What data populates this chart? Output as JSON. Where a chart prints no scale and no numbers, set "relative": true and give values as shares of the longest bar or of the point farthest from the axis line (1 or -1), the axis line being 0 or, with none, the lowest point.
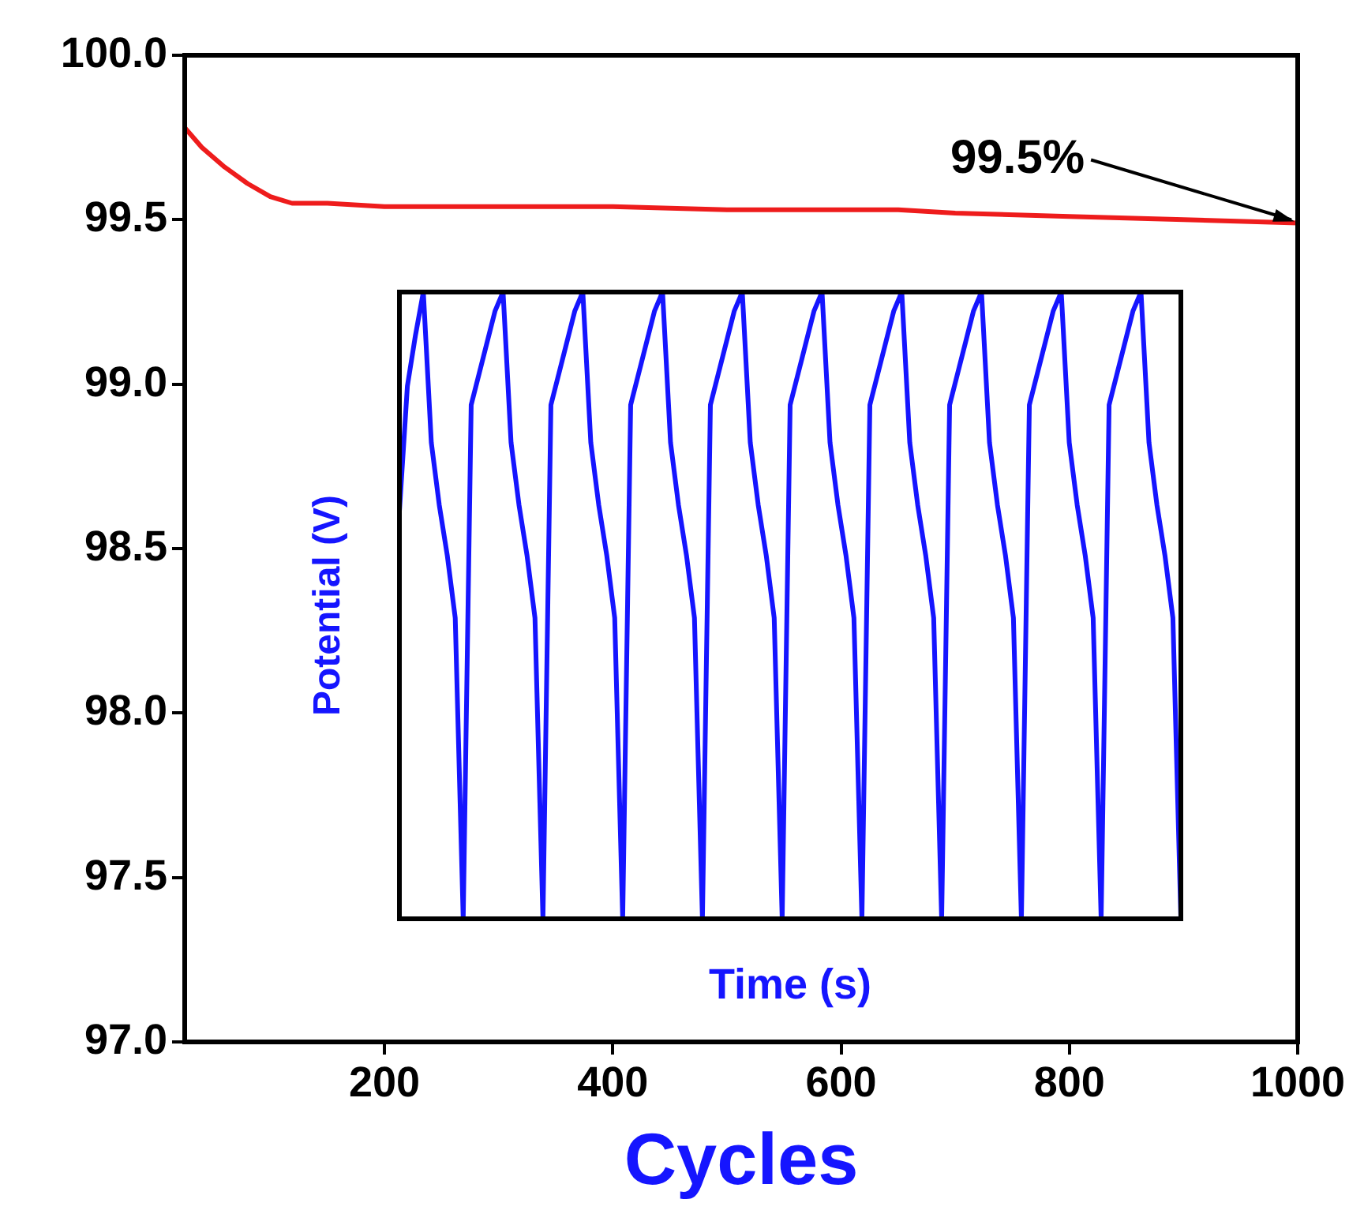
{
  "chart_data": [
    {
      "type": "line",
      "xlabel": "Cycles",
      "xlim": [
        25,
        1000
      ],
      "xticks": [
        200,
        400,
        600,
        800,
        1000
      ],
      "ylim": [
        97,
        100
      ],
      "yticks": [
        {
          "value": 97,
          "label": "97.0"
        },
        {
          "value": 97.5,
          "label": "97.5"
        },
        {
          "value": 98,
          "label": "98.0"
        },
        {
          "value": 98.5,
          "label": "98.5"
        },
        {
          "value": 99,
          "label": "99.0"
        },
        {
          "value": 99.5,
          "label": "99.5"
        },
        {
          "value": 100,
          "label": "100.0"
        }
      ],
      "grid": false,
      "legend": false,
      "marker": "none",
      "line_style": "solid",
      "annotations": [
        {
          "text": "99.5%",
          "x": 1000,
          "y": 99.49
        }
      ],
      "series": [
        {
          "color": "#ee1c1c",
          "x": [
            25,
            40,
            60,
            80,
            100,
            119,
            150,
            200,
            300,
            400,
            500,
            600,
            650,
            700,
            800,
            900,
            1000
          ],
          "values": [
            99.78,
            99.72,
            99.66,
            99.61,
            99.57,
            99.55,
            99.55,
            99.54,
            99.54,
            99.54,
            99.53,
            99.53,
            99.53,
            99.52,
            99.51,
            99.5,
            99.49
          ]
        }
      ]
    },
    {
      "type": "line",
      "relative": true,
      "xlabel": "Time (s)",
      "ylabel": "Potential (V)",
      "grid": false,
      "legend": false,
      "marker": "none",
      "line_style": "solid",
      "categories": [
        null,
        null,
        null,
        null,
        null,
        null,
        null,
        null,
        null,
        null,
        null,
        null,
        null,
        null,
        null,
        null,
        null,
        null,
        null,
        null,
        null,
        null,
        null,
        null,
        null,
        null,
        null,
        null,
        null,
        null,
        null,
        null,
        null,
        null,
        null,
        null,
        null,
        null,
        null,
        null,
        null,
        null,
        null,
        null,
        null,
        null,
        null,
        null,
        null,
        null,
        null,
        null,
        null,
        null,
        null,
        null,
        null,
        null,
        null,
        null,
        null,
        null,
        null,
        null,
        null,
        null,
        null,
        null,
        null,
        null,
        null,
        null,
        null,
        null,
        null,
        null,
        null,
        null,
        null,
        null,
        null,
        null,
        null,
        null,
        null,
        null,
        null,
        null,
        null,
        null,
        null,
        null,
        null,
        null,
        null,
        null,
        null,
        null,
        null
      ],
      "series": [
        {
          "color": "#1515ff",
          "values": [
            0.65,
            0.85,
            0.93,
            1,
            0.76,
            0.66,
            0.58,
            0.48,
            0,
            0.82,
            0.87,
            0.92,
            0.97,
            1,
            0.76,
            0.66,
            0.58,
            0.48,
            0,
            0.82,
            0.87,
            0.92,
            0.97,
            1,
            0.76,
            0.66,
            0.58,
            0.48,
            0,
            0.82,
            0.87,
            0.92,
            0.97,
            1,
            0.76,
            0.66,
            0.58,
            0.48,
            0,
            0.82,
            0.87,
            0.92,
            0.97,
            1,
            0.76,
            0.66,
            0.58,
            0.48,
            0,
            0.82,
            0.87,
            0.92,
            0.97,
            1,
            0.76,
            0.66,
            0.58,
            0.48,
            0,
            0.82,
            0.87,
            0.92,
            0.97,
            1,
            0.76,
            0.66,
            0.58,
            0.48,
            0,
            0.82,
            0.87,
            0.92,
            0.97,
            1,
            0.76,
            0.66,
            0.58,
            0.48,
            0,
            0.82,
            0.87,
            0.92,
            0.97,
            1,
            0.76,
            0.66,
            0.58,
            0.48,
            0,
            0.82,
            0.87,
            0.92,
            0.97,
            1,
            0.76,
            0.66,
            0.58,
            0.48,
            0
          ]
        }
      ]
    }
  ]
}
